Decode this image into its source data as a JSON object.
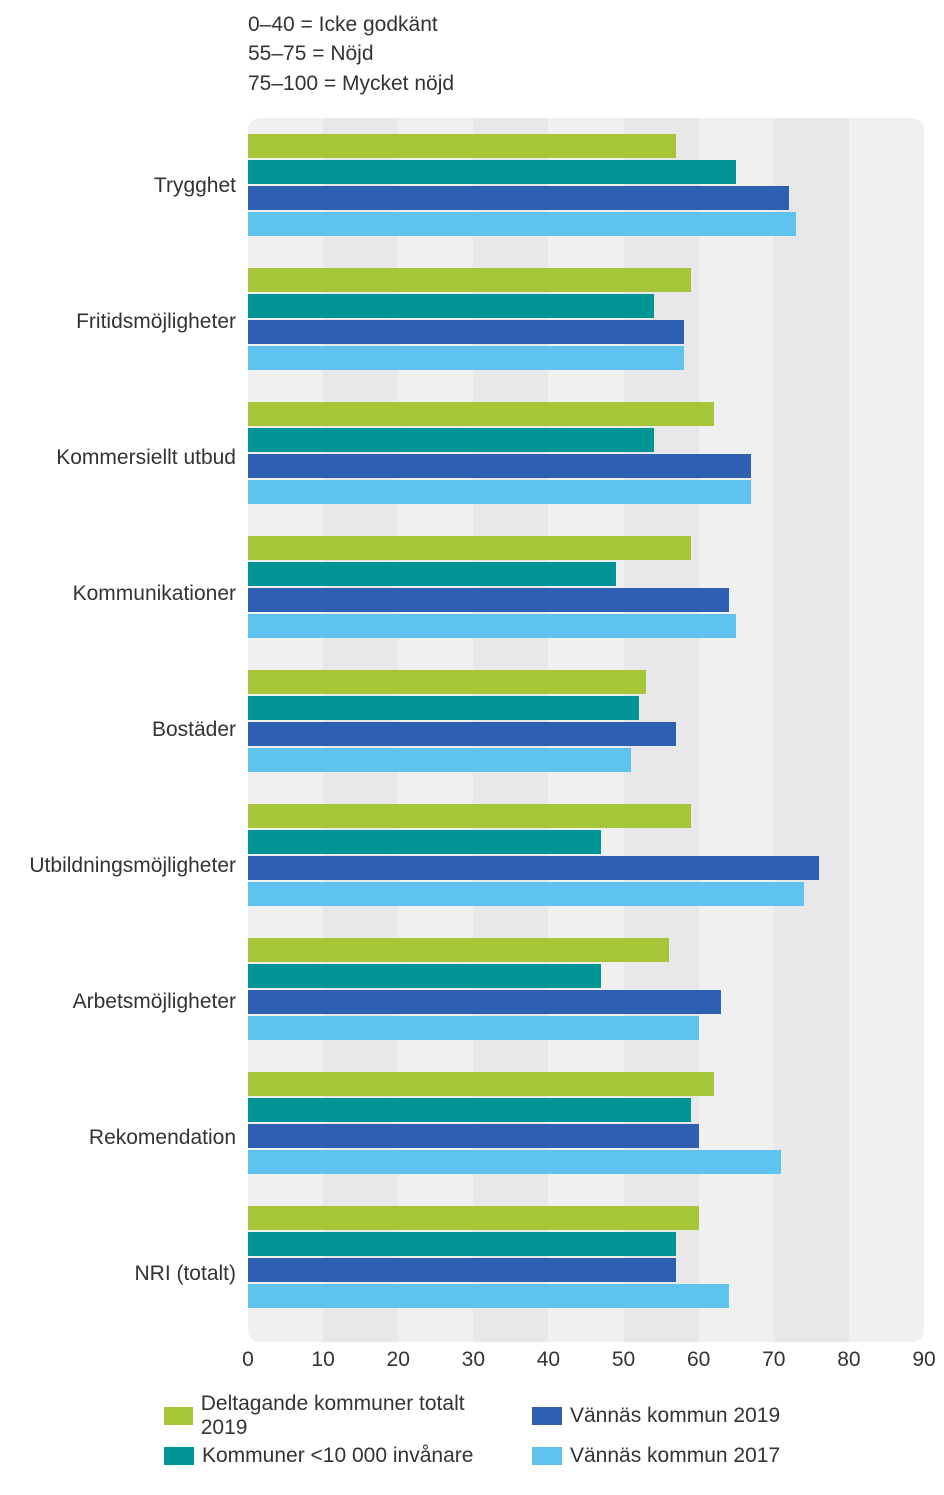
{
  "header": {
    "line1": "0–40 = Icke godkänt",
    "line2": "55–75 = Nöjd",
    "line3": "75–100 = Mycket nöjd"
  },
  "chart": {
    "type": "bar",
    "xmin": 0,
    "xmax": 90,
    "tick_step": 10,
    "ticks": [
      0,
      10,
      20,
      30,
      40,
      50,
      60,
      70,
      80,
      90
    ],
    "band_colors": [
      "#f0f0f0",
      "#e8e8e8"
    ],
    "background_color": "#ffffff",
    "label_font_size": 21,
    "series": [
      {
        "key": "s0",
        "label": "Deltagande kommuner totalt 2019",
        "color": "#a7c539"
      },
      {
        "key": "s1",
        "label": "Kommuner <10 000 invånare",
        "color": "#009494"
      },
      {
        "key": "s2",
        "label": "Vännäs kommun 2019",
        "color": "#2e5fb3"
      },
      {
        "key": "s3",
        "label": "Vännäs kommun 2017",
        "color": "#5fc3ef"
      }
    ],
    "categories": [
      {
        "label": "Trygghet",
        "values": [
          57,
          65,
          72,
          73
        ]
      },
      {
        "label": "Fritidsmöjligheter",
        "values": [
          59,
          54,
          58,
          58
        ]
      },
      {
        "label": "Kommersiellt utbud",
        "values": [
          62,
          54,
          67,
          67
        ]
      },
      {
        "label": "Kommunikationer",
        "values": [
          59,
          49,
          64,
          65
        ]
      },
      {
        "label": "Bostäder",
        "values": [
          53,
          52,
          57,
          51
        ]
      },
      {
        "label": "Utbildningsmöjligheter",
        "values": [
          59,
          47,
          76,
          74
        ]
      },
      {
        "label": "Arbetsmöjligheter",
        "values": [
          56,
          47,
          63,
          60
        ]
      },
      {
        "label": "Rekomendation",
        "values": [
          62,
          59,
          60,
          71
        ]
      },
      {
        "label": "NRI (totalt)",
        "values": [
          60,
          57,
          57,
          64
        ]
      }
    ]
  }
}
